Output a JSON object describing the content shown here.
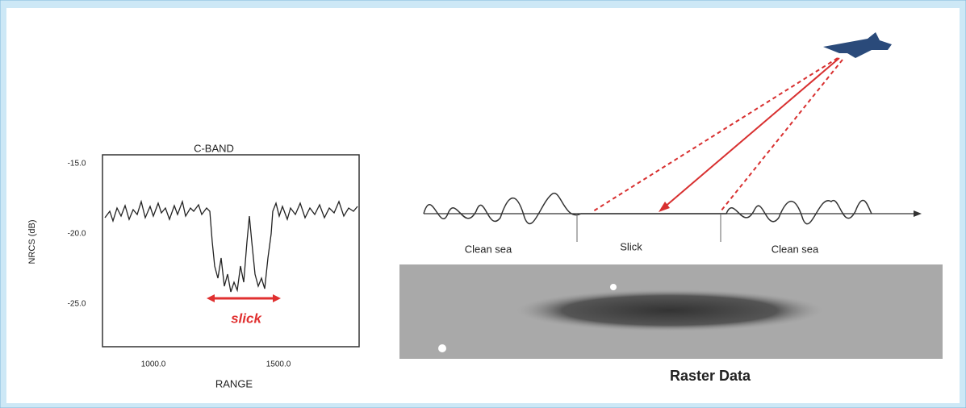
{
  "left_plot": {
    "title": "C-BAND",
    "y_label": "NRCS (dB)",
    "x_label": "RANGE",
    "y_tick_labels": [
      "-15.0",
      "-20.0",
      "-25.0"
    ],
    "x_tick_labels": [
      "1000.0",
      "1500.0"
    ],
    "annotation": "slick"
  },
  "right_diagram": {
    "zones": [
      "Clean sea",
      "Slick",
      "Clean sea"
    ],
    "caption": "Raster Data"
  }
}
